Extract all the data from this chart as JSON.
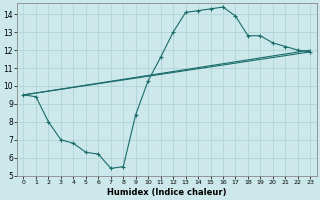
{
  "xlabel": "Humidex (Indice chaleur)",
  "bg_color": "#cce8ea",
  "grid_color": "#b0d4d6",
  "line_color": "#1a6b6b",
  "xlim": [
    -0.5,
    23.5
  ],
  "ylim": [
    5,
    14.6
  ],
  "xticks": [
    0,
    1,
    2,
    3,
    4,
    5,
    6,
    7,
    8,
    9,
    10,
    11,
    12,
    13,
    14,
    15,
    16,
    17,
    18,
    19,
    20,
    21,
    22,
    23
  ],
  "yticks": [
    5,
    6,
    7,
    8,
    9,
    10,
    11,
    12,
    13,
    14
  ],
  "line1_x": [
    0,
    1,
    2,
    3,
    4,
    5,
    6,
    7,
    8,
    9,
    10,
    11,
    12,
    13,
    14,
    15,
    16,
    17,
    18,
    19,
    20,
    21,
    22,
    23
  ],
  "line1_y": [
    9.5,
    9.4,
    8.0,
    7.0,
    6.8,
    6.3,
    6.2,
    5.4,
    5.5,
    8.4,
    10.3,
    11.6,
    13.0,
    14.1,
    14.2,
    14.3,
    14.4,
    13.9,
    12.8,
    12.8,
    12.4,
    12.2,
    12.0,
    11.9
  ],
  "line2_x": [
    0,
    23
  ],
  "line2_y": [
    9.5,
    12.0
  ],
  "line3_x": [
    0,
    23
  ],
  "line3_y": [
    9.5,
    11.9
  ]
}
